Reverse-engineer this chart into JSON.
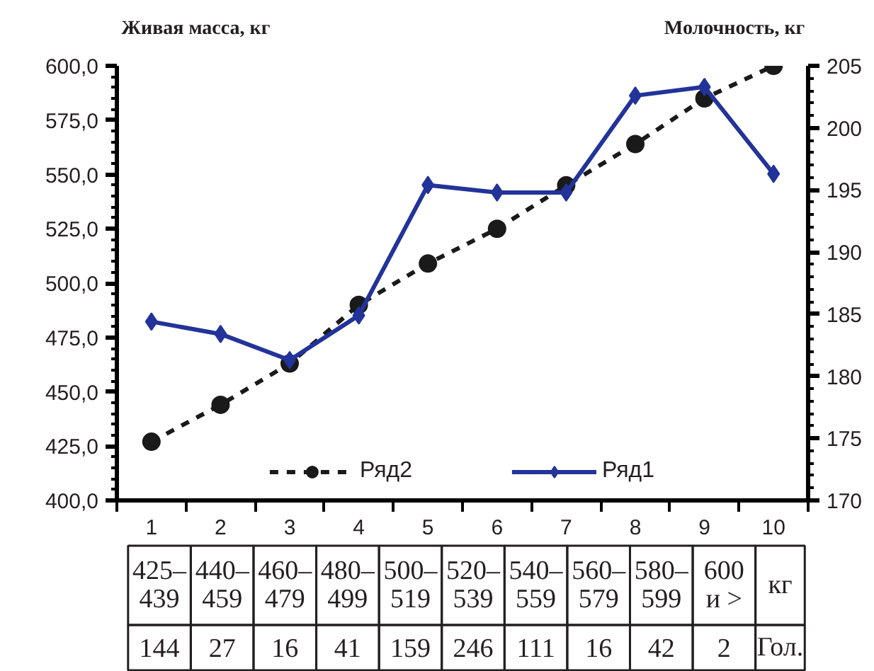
{
  "chart_data": {
    "type": "line",
    "ylabel": "Живая масса, кг",
    "y2label": "Молочность, кг",
    "categories": [
      "1",
      "2",
      "3",
      "4",
      "5",
      "6",
      "7",
      "8",
      "9",
      "10"
    ],
    "series": [
      {
        "name": "Ряд2",
        "color": "#1a1a1a",
        "marker": "circle",
        "line_style": "dashed",
        "values": [
          427,
          444,
          463,
          490,
          509,
          525,
          545,
          564,
          585,
          600
        ]
      },
      {
        "name": "Ряд1",
        "color": "#223399",
        "marker": "diamond",
        "line_style": "solid",
        "axis": "y2",
        "values": [
          184.4,
          183.4,
          181.3,
          184.9,
          195.4,
          194.8,
          194.8,
          202.6,
          203.3,
          196.3
        ]
      }
    ],
    "ylim": [
      400,
      600
    ],
    "yticks": [
      {
        "value": 400,
        "label": "400,0"
      },
      {
        "value": 425,
        "label": "425,0"
      },
      {
        "value": 450,
        "label": "450,0"
      },
      {
        "value": 475,
        "label": "475,0"
      },
      {
        "value": 500,
        "label": "500,0"
      },
      {
        "value": 525,
        "label": "525,0"
      },
      {
        "value": 550,
        "label": "550,0"
      },
      {
        "value": 575,
        "label": "575,0"
      },
      {
        "value": 600,
        "label": "600,0"
      }
    ],
    "y2lim": [
      170,
      205
    ],
    "y2ticks": [
      170,
      175,
      180,
      185,
      190,
      195,
      200,
      205
    ],
    "grid": false,
    "legend": "bottom",
    "annotations": [
      "425–\n439",
      "440–\n459",
      "460–\n479",
      "480–\n499",
      "500–\n519",
      "520–\n539",
      "540–\n559",
      "560–\n579",
      "580–\n599",
      "600\nи >",
      "кг",
      "144",
      "27",
      "16",
      "41",
      "159",
      "246",
      "111",
      "16",
      "42",
      "2",
      "Гол."
    ]
  }
}
